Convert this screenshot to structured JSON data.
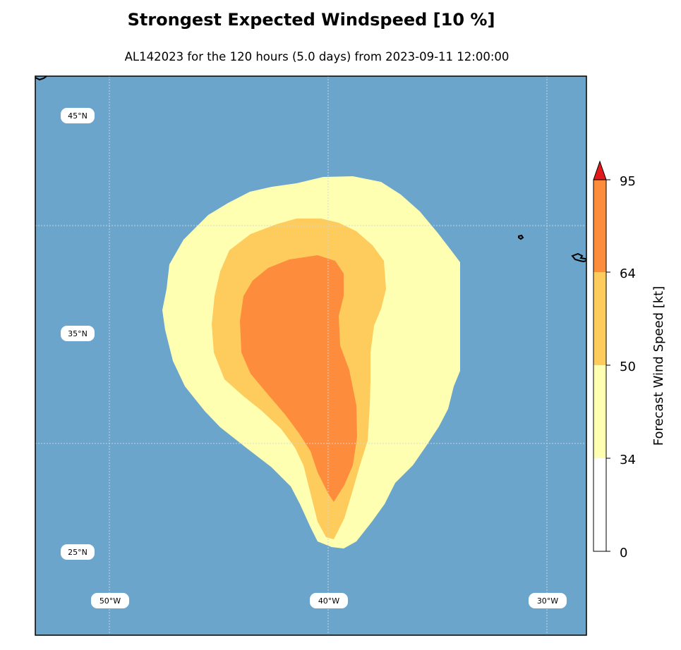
{
  "title": "Strongest Expected Windspeed [10 %]",
  "subtitle": "AL142023 for the 120 hours (5.0 days) from 2023-09-11 12:00:00",
  "map": {
    "ocean_color": "#6ba5cb",
    "extent": {
      "lon_min": -53.4,
      "lon_max": -28.2,
      "lat_min": 21.2,
      "lat_max": 46.8
    },
    "lat_labels": [
      "45°N",
      "35°N",
      "25°N"
    ],
    "lon_labels": [
      "50°W",
      "40°W",
      "30°W"
    ],
    "gridlines": true
  },
  "colorbar": {
    "label": "Forecast Wind Speed [kt]",
    "ticks": [
      "0",
      "34",
      "50",
      "64",
      "95"
    ],
    "levels": [
      {
        "from": 0,
        "to": 34,
        "color": "#ffffff"
      },
      {
        "from": 34,
        "to": 50,
        "color": "#ffffb2"
      },
      {
        "from": 50,
        "to": 64,
        "color": "#fecc5c"
      },
      {
        "from": 64,
        "to": 95,
        "color": "#fd8d3c"
      }
    ],
    "extend_color": "#e31a1c"
  }
}
